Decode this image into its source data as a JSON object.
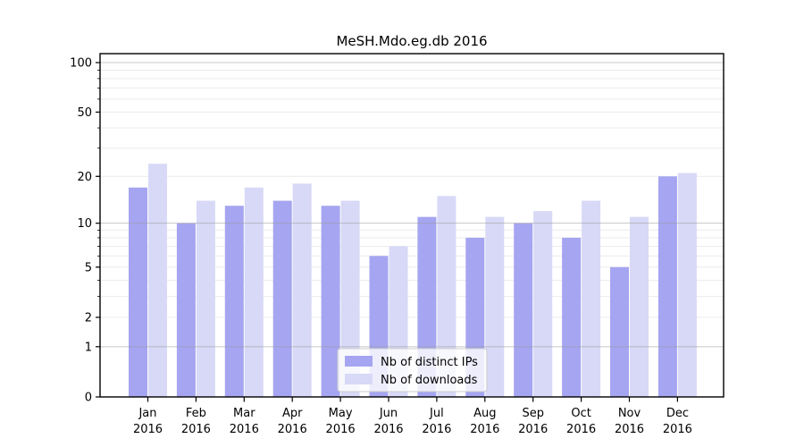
{
  "chart_data": {
    "type": "bar",
    "title": "MeSH.Mdo.eg.db 2016",
    "scale": "log1p",
    "categories": [
      "Jan",
      "Feb",
      "Mar",
      "Apr",
      "May",
      "Jun",
      "Jul",
      "Aug",
      "Sep",
      "Oct",
      "Nov",
      "Dec"
    ],
    "year_label": "2016",
    "series": [
      {
        "name": "Nb of distinct IPs",
        "color": "#a5a5f1",
        "values": [
          17,
          10,
          13,
          14,
          13,
          6,
          11,
          8,
          10,
          8,
          5,
          20
        ]
      },
      {
        "name": "Nb of downloads",
        "color": "#d8d8f7",
        "values": [
          24,
          14,
          17,
          18,
          14,
          7,
          15,
          11,
          12,
          14,
          11,
          21
        ]
      }
    ],
    "yticks": [
      100,
      50,
      20,
      10,
      5,
      2,
      1,
      0
    ],
    "major_gridlines": [
      1,
      10,
      100
    ],
    "minor_gridlines": [
      2,
      3,
      4,
      5,
      6,
      7,
      8,
      9,
      20,
      30,
      40,
      50,
      60,
      70,
      80,
      90
    ],
    "ylim": [
      0,
      113
    ],
    "xlabel": "",
    "ylabel": "",
    "grid": "on",
    "legend_position": "lower-center",
    "colors": {
      "axis": "#000000",
      "grid_minor": "#ebebeb",
      "grid_major": "#9a9a9a",
      "legend_border": "#cccccc",
      "legend_bg": "#ffffff",
      "background": "#ffffff"
    }
  }
}
